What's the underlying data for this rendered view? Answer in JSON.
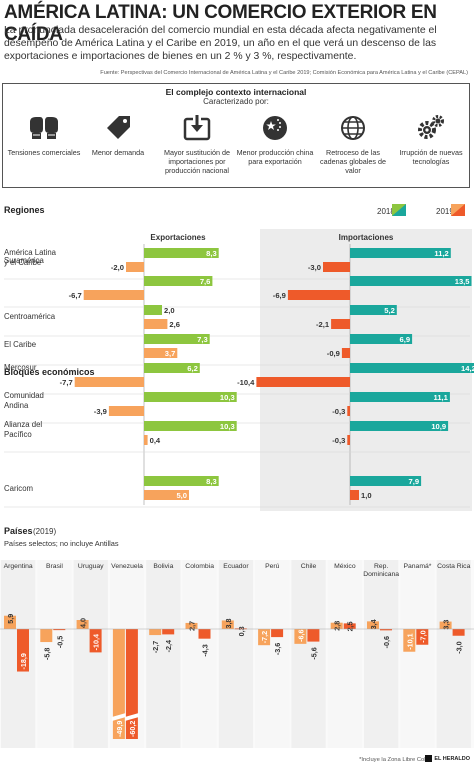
{
  "header": {
    "title": "AMÉRICA LATINA: UN COMERCIO EXTERIOR EN CAÍDA",
    "intro": "La pronunciada desaceleración del comercio mundial en esta década afecta negativamente el desempeño de América Latina y el Caribe en 2019, un año en el que verá un descenso de las exportaciones e importaciones de bienes en un 2 % y 3 %, respectivamente.",
    "source": "Fuente: Perspectivas del Comercio Internacional de América Latina y el Caribe 2019; Comisión Económica para América Latina y el Caribe (CEPAL)"
  },
  "context": {
    "title": "El complejo contexto internacional",
    "subtitle": "Caracterizado por:",
    "items": [
      {
        "label": "Tensiones comerciales",
        "icon": "boxing-gloves-icon"
      },
      {
        "label": "Menor demanda",
        "icon": "price-tag-icon"
      },
      {
        "label": "Mayor sustitución de importaciones por producción nacional",
        "icon": "download-box-icon"
      },
      {
        "label": "Menor producción china para exportación",
        "icon": "china-flag-icon"
      },
      {
        "label": "Retroceso de las cadenas globales de valor",
        "icon": "globe-icon"
      },
      {
        "label": "Irrupción de nuevas tecnologías",
        "icon": "gears-icon"
      }
    ]
  },
  "colors": {
    "exp2018": "#8dc63f",
    "exp2019": "#f7a35c",
    "imp2018": "#1aa79c",
    "imp2019": "#ee5a2a",
    "country2018": "#f7a35c",
    "country2019": "#ee5a2a",
    "import_panel": "#ececec"
  },
  "chart_data": [
    {
      "type": "bar",
      "title": "Regiones",
      "legend": [
        "2018",
        "2019"
      ],
      "panels": [
        "Exportaciones",
        "Importaciones"
      ],
      "categories": [
        "América Latina y el Caribe",
        "Suramérica",
        "Centroamérica",
        "El Caribe"
      ],
      "series": [
        {
          "name": "Exportaciones 2018",
          "values": [
            8.3,
            7.6,
            2.0,
            7.3
          ]
        },
        {
          "name": "Exportaciones 2019",
          "values": [
            -2.0,
            -6.7,
            2.6,
            3.7
          ]
        },
        {
          "name": "Importaciones 2018",
          "values": [
            11.2,
            13.5,
            5.2,
            6.9
          ]
        },
        {
          "name": "Importaciones 2019",
          "values": [
            -3.0,
            -6.9,
            -2.1,
            -0.9
          ]
        }
      ],
      "labels": {
        "exp2018": [
          "8,3",
          "7,6",
          "2,0",
          "7,3"
        ],
        "exp2019": [
          "-2,0",
          "-6,7",
          "2,6",
          "3,7"
        ],
        "imp2018": [
          "11,2",
          "13,5",
          "5,2",
          "6,9"
        ],
        "imp2019": [
          "-3,0",
          "-6,9",
          "-2,1",
          "-0,9"
        ]
      }
    },
    {
      "type": "bar",
      "title": "Bloques económicos",
      "categories": [
        "Mercosur",
        "Comunidad Andina",
        "Alianza del Pacífico",
        "Caricom"
      ],
      "series": [
        {
          "name": "Exportaciones 2018",
          "values": [
            6.2,
            10.3,
            10.3,
            8.3
          ]
        },
        {
          "name": "Exportaciones 2019",
          "values": [
            -7.7,
            -3.9,
            0.4,
            5.0
          ]
        },
        {
          "name": "Importaciones 2018",
          "values": [
            14.2,
            11.1,
            10.9,
            7.9
          ]
        },
        {
          "name": "Importaciones 2019",
          "values": [
            -10.4,
            -0.3,
            -0.3,
            1.0
          ]
        }
      ],
      "labels": {
        "exp2018": [
          "6,2",
          "10,3",
          "10,3",
          "8,3"
        ],
        "exp2019": [
          "-7,7",
          "-3,9",
          "0,4",
          "5,0"
        ],
        "imp2018": [
          "14,2",
          "11,1",
          "10,9",
          "7,9"
        ],
        "imp2019": [
          "-10,4",
          "-0,3",
          "-0,3",
          "1,0"
        ]
      }
    },
    {
      "type": "bar",
      "title": "Países",
      "title_suffix": "(2019)",
      "note": "Países selectos; no incluye Antillas",
      "footnote": "*Incluye la Zona Libre Colón",
      "panels": [
        "Exportaciones",
        "Importaciones"
      ],
      "categories": [
        "Argentina",
        "Brasil",
        "Uruguay",
        "Venezuela",
        "Bolivia",
        "Colombia",
        "Ecuador",
        "Perú",
        "Chile",
        "México",
        "Rep. Dominicana",
        "Panamá*",
        "Costa Rica"
      ],
      "series": [
        {
          "name": "Exportaciones",
          "values": [
            5.9,
            -5.8,
            4.0,
            -49.9,
            -2.7,
            2.7,
            3.8,
            -7.2,
            -6.6,
            2.8,
            3.4,
            -10.1,
            3.3
          ]
        },
        {
          "name": "Importaciones",
          "values": [
            -18.9,
            -0.5,
            -10.4,
            -60.2,
            -2.4,
            -4.3,
            0.3,
            -3.6,
            -5.6,
            2.5,
            -0.6,
            -7.0,
            -3.0
          ]
        }
      ],
      "labels": {
        "exp": [
          "5,9",
          "-5,8",
          "4,0",
          "-49,9",
          "-2,7",
          "2,7",
          "3,8",
          "-7,2",
          "-6,6",
          "2,8",
          "3,4",
          "-10,1",
          "3,3"
        ],
        "imp": [
          "-18,9",
          "-0,5",
          "-10,4",
          "-60,2",
          "-2,4",
          "-4,3",
          "0,3",
          "-3,6",
          "-5,6",
          "2,5",
          "-0,6",
          "-7,0",
          "-3,0"
        ]
      }
    }
  ],
  "brand": "EL HERALDO"
}
